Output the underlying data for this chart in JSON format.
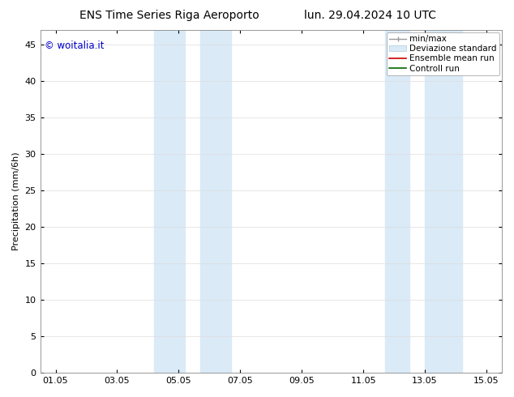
{
  "title_left": "ENS Time Series Riga Aeroporto",
  "title_right": "lun. 29.04.2024 10 UTC",
  "ylabel": "Precipitation (mm/6h)",
  "watermark": "© woitalia.it",
  "watermark_color": "#0000cc",
  "x_tick_labels": [
    "01.05",
    "03.05",
    "05.05",
    "07.05",
    "09.05",
    "11.05",
    "13.05",
    "15.05"
  ],
  "x_tick_positions": [
    0,
    2,
    4,
    6,
    8,
    10,
    12,
    14
  ],
  "x_min": -0.5,
  "x_max": 14.5,
  "y_min": 0,
  "y_max": 47,
  "y_ticks": [
    0,
    5,
    10,
    15,
    20,
    25,
    30,
    35,
    40,
    45
  ],
  "shaded_regions": [
    {
      "x_start": 3.2,
      "x_end": 4.2,
      "color": "#daeaf7"
    },
    {
      "x_start": 4.7,
      "x_end": 5.7,
      "color": "#daeaf7"
    },
    {
      "x_start": 10.7,
      "x_end": 11.5,
      "color": "#daeaf7"
    },
    {
      "x_start": 12.0,
      "x_end": 13.2,
      "color": "#daeaf7"
    }
  ],
  "background_color": "#ffffff",
  "grid_color": "#dddddd",
  "title_fontsize": 10,
  "axis_fontsize": 8,
  "tick_fontsize": 8,
  "legend_fontsize": 7.5
}
